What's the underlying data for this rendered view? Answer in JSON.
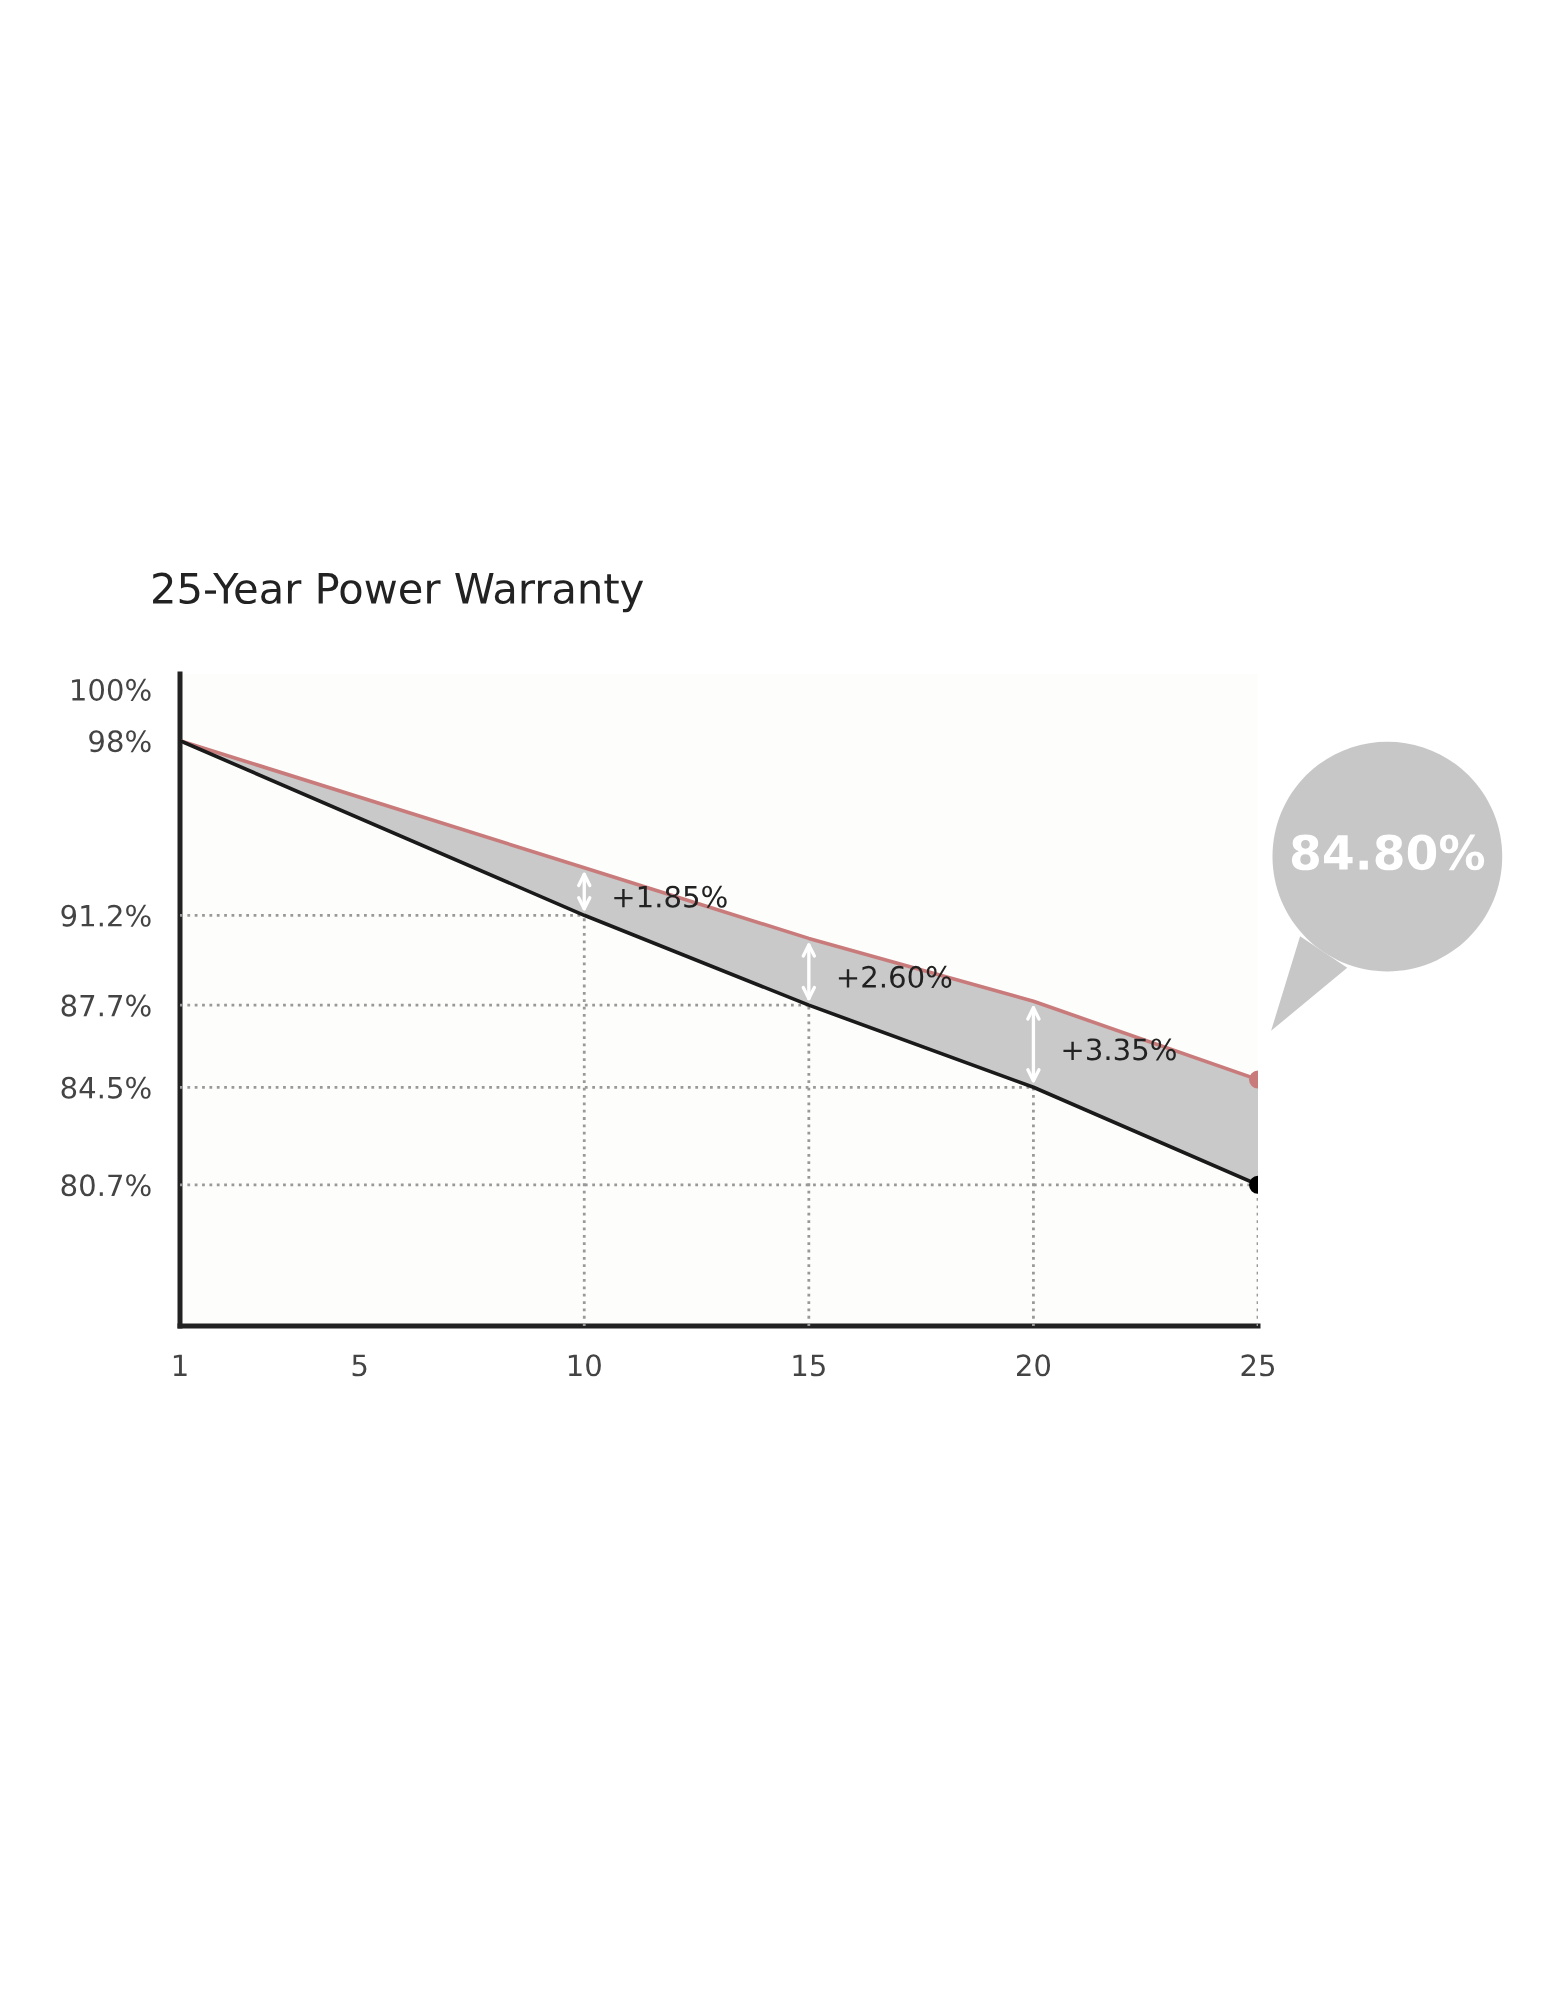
{
  "chart_data": {
    "type": "line",
    "title": "25-Year Power Warranty",
    "x": [
      1,
      10,
      15,
      20,
      25
    ],
    "series": [
      {
        "color": "#c97b7b",
        "values": [
          98,
          93.05,
          90.3,
          87.85,
          84.8
        ]
      },
      {
        "color": "#1a1a1a",
        "values": [
          98,
          91.2,
          87.7,
          84.5,
          80.7
        ],
        "lower": [
          98,
          91.2,
          87.7,
          84.5,
          80.7
        ],
        "upper": [
          98,
          93.05,
          90.3,
          87.85,
          84.8
        ]
      },
      {
        "type": "scatter",
        "color": "#c97b7b",
        "x": [
          25
        ],
        "values": [
          84.8
        ]
      },
      {
        "type": "scatter",
        "color": "#000000",
        "x": [
          25
        ],
        "values": [
          80.7
        ]
      }
    ],
    "xlim": [
      1,
      25
    ],
    "xticks": [
      1,
      5,
      10,
      15,
      20,
      25
    ],
    "ylim": [
      75.2,
      100.6
    ],
    "yticks": [
      {
        "value": 100,
        "label": "100%"
      },
      {
        "value": 98,
        "label": "98%"
      },
      {
        "value": 91.2,
        "label": "91.2%"
      },
      {
        "value": 87.7,
        "label": "87.7%"
      },
      {
        "value": 84.5,
        "label": "84.5%"
      },
      {
        "value": 80.7,
        "label": "80.7%"
      }
    ],
    "ref_lines": [
      {
        "axis": "y",
        "value": 91.2,
        "color": "#999999",
        "line_style": "dotted"
      },
      {
        "axis": "y",
        "value": 87.7,
        "color": "#999999",
        "line_style": "dotted"
      },
      {
        "axis": "y",
        "value": 84.5,
        "color": "#999999",
        "line_style": "dotted"
      },
      {
        "axis": "y",
        "value": 80.7,
        "color": "#999999",
        "line_style": "dotted"
      },
      {
        "axis": "x",
        "value": 10,
        "color": "#999999",
        "line_style": "dotted"
      },
      {
        "axis": "x",
        "value": 15,
        "color": "#999999",
        "line_style": "dotted"
      },
      {
        "axis": "x",
        "value": 20,
        "color": "#999999",
        "line_style": "dotted"
      },
      {
        "axis": "x",
        "value": 25,
        "color": "#999999",
        "line_style": "dotted"
      }
    ],
    "annotations": [
      {
        "text": "+1.85%",
        "x": 10,
        "y": 93.05
      },
      {
        "text": "+2.60%",
        "x": 15,
        "y": 90.3
      },
      {
        "text": "+3.35%",
        "x": 20,
        "y": 87.85
      },
      "84.80%"
    ],
    "grid": false,
    "legend": false
  }
}
